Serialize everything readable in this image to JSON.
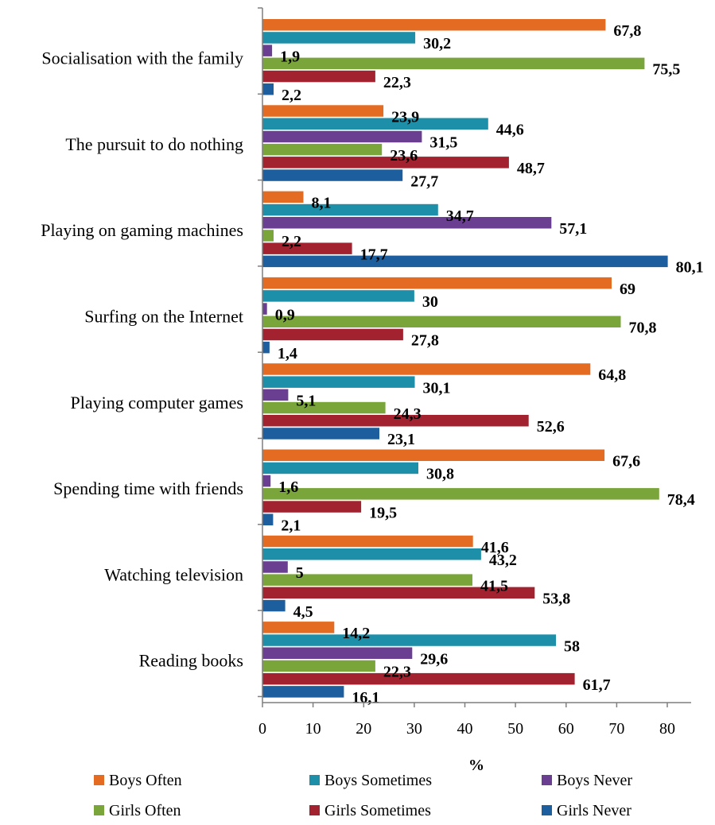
{
  "chart_data": {
    "type": "bar",
    "orientation": "horizontal",
    "title": "",
    "xlabel": "%",
    "ylabel": "",
    "xlim": [
      0,
      80
    ],
    "xticks": [
      0,
      10,
      20,
      30,
      40,
      50,
      60,
      70,
      80
    ],
    "grid": false,
    "legend_position": "bottom",
    "categories": [
      "Socialisation with the family",
      "The pursuit to do nothing",
      "Playing on gaming machines",
      "Surfing on the Internet",
      "Playing computer games",
      "Spending time with friends",
      "Watching television",
      "Reading books"
    ],
    "series": [
      {
        "name": "Boys Often",
        "color": "#E46C22",
        "values": [
          67.8,
          23.9,
          8.1,
          69,
          64.8,
          67.6,
          41.6,
          14.2
        ],
        "labels": [
          "67,8",
          "23,9",
          "8,1",
          "69",
          "64,8",
          "67,6",
          "41,6",
          "14,2"
        ]
      },
      {
        "name": "Boys Sometimes",
        "color": "#1E8FA8",
        "values": [
          30.2,
          44.6,
          34.7,
          30,
          30.1,
          30.8,
          43.2,
          58
        ],
        "labels": [
          "30,2",
          "44,6",
          "34,7",
          "30",
          "30,1",
          "30,8",
          "43,2",
          "58"
        ]
      },
      {
        "name": "Boys Never",
        "color": "#6A3E91",
        "values": [
          1.9,
          31.5,
          57.1,
          0.9,
          5.1,
          1.6,
          5,
          29.6
        ],
        "labels": [
          "1,9",
          "31,5",
          "57,1",
          "0,9",
          "5,1",
          "1,6",
          "5",
          "29,6"
        ]
      },
      {
        "name": "Girls Often",
        "color": "#79A53A",
        "values": [
          75.5,
          23.6,
          2.2,
          70.8,
          24.3,
          78.4,
          41.5,
          22.3
        ],
        "labels": [
          "75,5",
          "23,6",
          "2,2",
          "70,8",
          "24,3",
          "78,4",
          "41,5",
          "22,3"
        ]
      },
      {
        "name": "Girls Sometimes",
        "color": "#A2232F",
        "values": [
          22.3,
          48.7,
          17.7,
          27.8,
          52.6,
          19.5,
          53.8,
          61.7
        ],
        "labels": [
          "22,3",
          "48,7",
          "17,7",
          "27,8",
          "52,6",
          "19,5",
          "53,8",
          "61,7"
        ]
      },
      {
        "name": "Girls Never",
        "color": "#1D5F9E",
        "values": [
          2.2,
          27.7,
          80.1,
          1.4,
          23.1,
          2.1,
          4.5,
          16.1
        ],
        "labels": [
          "2,2",
          "27,7",
          "80,1",
          "1,4",
          "23,1",
          "2,1",
          "4,5",
          "16,1"
        ]
      }
    ]
  }
}
